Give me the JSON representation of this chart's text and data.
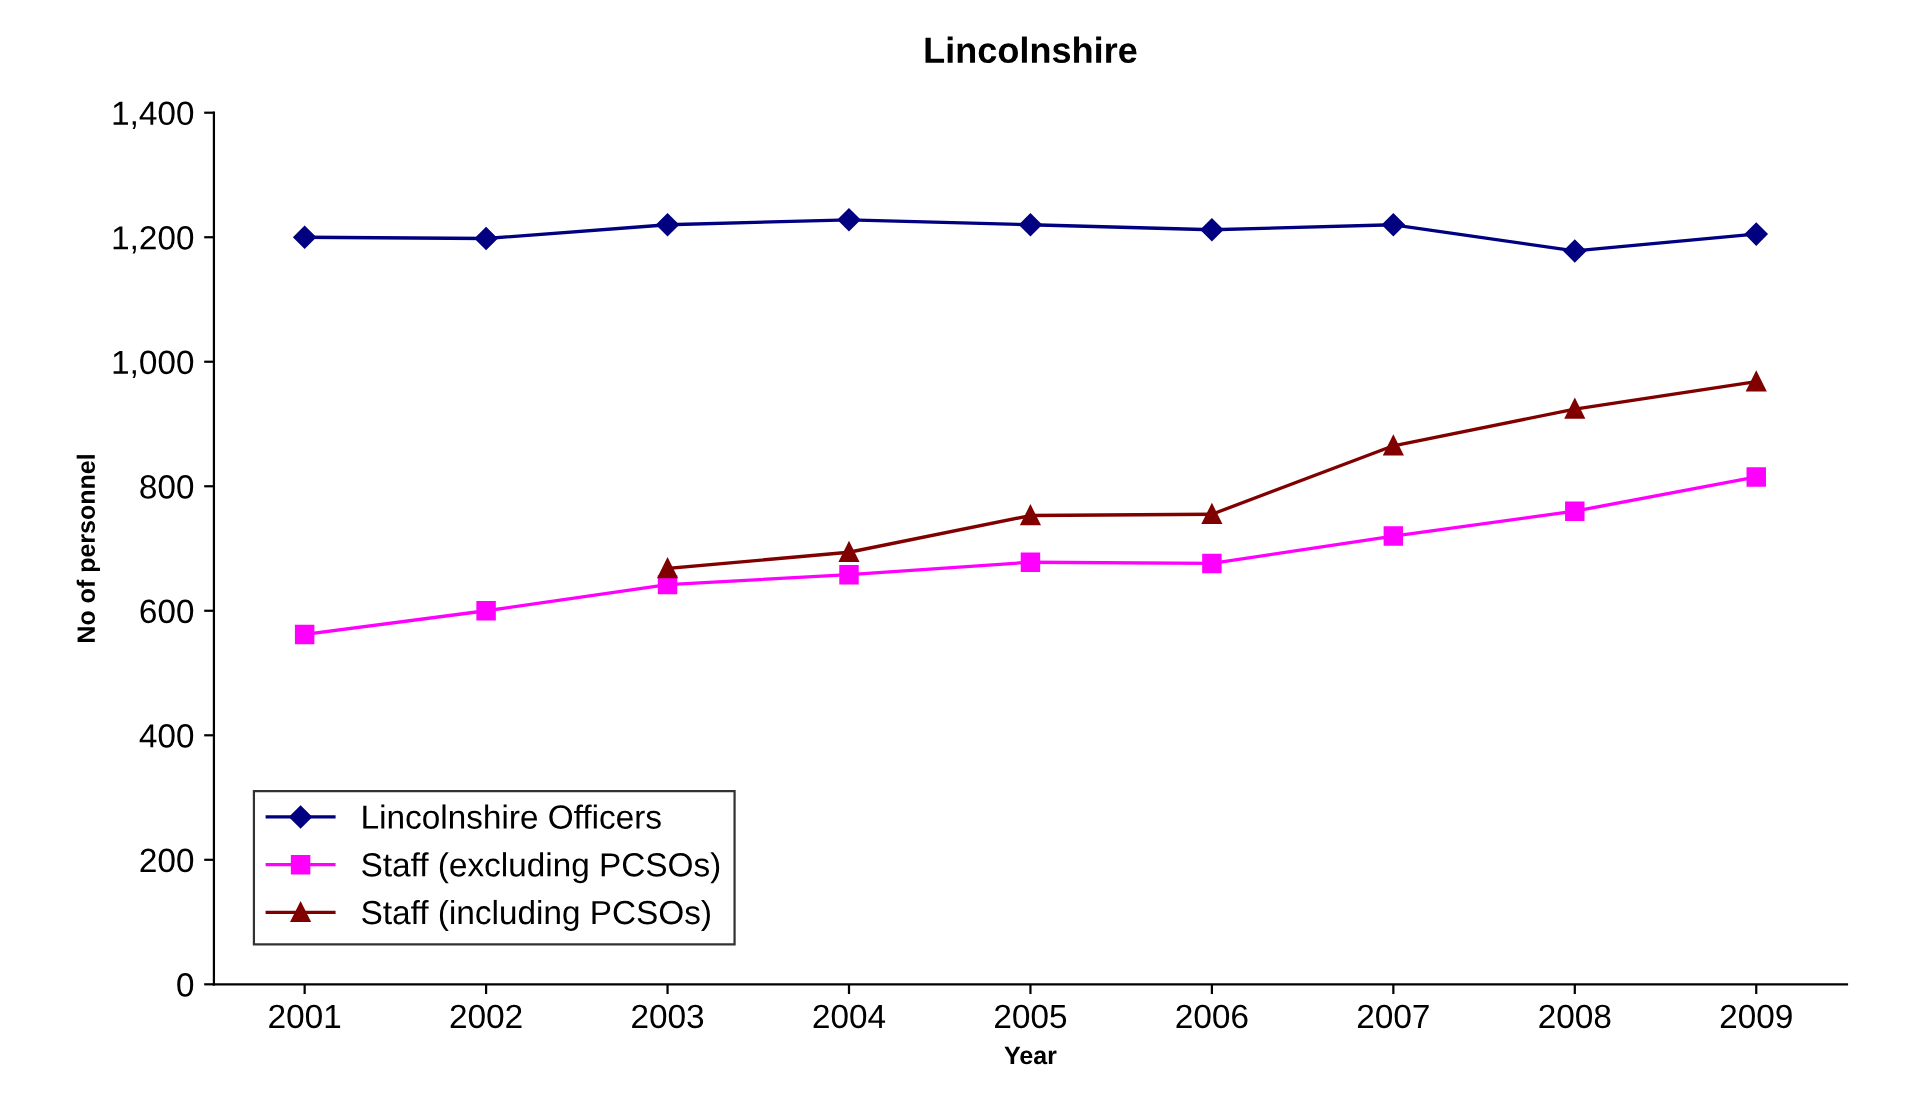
{
  "chart_data": {
    "type": "line",
    "title": "Lincolnshire",
    "xlabel": "Year",
    "ylabel": "No of personnel",
    "categories": [
      "2001",
      "2002",
      "2003",
      "2004",
      "2005",
      "2006",
      "2007",
      "2008",
      "2009"
    ],
    "series": [
      {
        "name": "Lincolnshire Officers",
        "color": "#000080",
        "marker": "diamond",
        "values": [
          1200,
          1198,
          1220,
          1228,
          1220,
          1212,
          1220,
          1178,
          1205
        ]
      },
      {
        "name": "Staff (excluding PCSOs)",
        "color": "#ff00ff",
        "marker": "square",
        "values": [
          562,
          600,
          642,
          658,
          678,
          676,
          720,
          760,
          815
        ]
      },
      {
        "name": "Staff (including PCSOs)",
        "color": "#800000",
        "marker": "triangle",
        "values": [
          null,
          null,
          668,
          694,
          753,
          755,
          865,
          924,
          968
        ]
      }
    ],
    "ylim": [
      0,
      1400
    ],
    "yticks": [
      0,
      200,
      400,
      600,
      800,
      {
        "value": 1000,
        "label": "1,000"
      },
      {
        "value": 1200,
        "label": "1,200"
      },
      {
        "value": 1400,
        "label": "1,400"
      }
    ],
    "legend": "bottom left",
    "grid": false,
    "line_style": "solid"
  }
}
